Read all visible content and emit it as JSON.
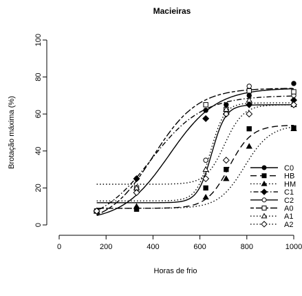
{
  "chart_data": {
    "type": "scatter",
    "title": "Macieiras",
    "xlabel": "Horas de frio",
    "ylabel": "Brotação máxima (%)",
    "xlim": [
      0,
      1000
    ],
    "ylim": [
      0,
      100
    ],
    "x_ticks": [
      0,
      200,
      400,
      600,
      800,
      1000
    ],
    "y_ticks": [
      0,
      20,
      40,
      60,
      80,
      100
    ],
    "grid": false,
    "legend_position": "bottom-right",
    "series": [
      {
        "name": "C0",
        "marker": "filled-circle",
        "line": "solid",
        "x": [
          160,
          330,
          625,
          712,
          810,
          1000
        ],
        "y": [
          7.5,
          25,
          62,
          65,
          70,
          76.5
        ],
        "fit": {
          "min": 2,
          "max": 74,
          "x50": 470,
          "slope": 100
        }
      },
      {
        "name": "HB",
        "marker": "filled-square",
        "line": "longdash",
        "x": [
          160,
          330,
          625,
          712,
          810,
          1000
        ],
        "y": [
          7.5,
          8.5,
          20,
          30,
          52,
          52.5
        ],
        "fit": {
          "min": 9,
          "max": 54,
          "x50": 725,
          "slope": 48
        }
      },
      {
        "name": "HM",
        "marker": "filled-triangle",
        "line": "dotted",
        "x": [
          160,
          330,
          625,
          712,
          810,
          1000
        ],
        "y": [
          7.5,
          10,
          15,
          25,
          42.5,
          52
        ],
        "fit": {
          "min": 9,
          "max": 54,
          "x50": 790,
          "slope": 55
        }
      },
      {
        "name": "C1",
        "marker": "filled-diamond",
        "line": "dotdash",
        "x": [
          160,
          330,
          625,
          712,
          810,
          1000
        ],
        "y": [
          7.5,
          25,
          57.5,
          60,
          65,
          67.5
        ],
        "fit": {
          "min": 0,
          "max": 70,
          "x50": 390,
          "slope": 110
        }
      },
      {
        "name": "C2",
        "marker": "open-circle",
        "line": "solid",
        "x": [
          160,
          330,
          625,
          712,
          810,
          1000
        ],
        "y": [
          7.5,
          17.5,
          35,
          60,
          75,
          70
        ],
        "fit": {
          "min": 12,
          "max": 65,
          "x50": 650,
          "slope": 30
        }
      },
      {
        "name": "A0",
        "marker": "open-square",
        "line": "twodash",
        "x": [
          160,
          330,
          625,
          712,
          810,
          1000
        ],
        "y": [
          7.5,
          20,
          65,
          62.5,
          72.5,
          72
        ],
        "fit": {
          "min": 0,
          "max": 74,
          "x50": 400,
          "slope": 95
        }
      },
      {
        "name": "A1",
        "marker": "open-triangle",
        "line": "dotted",
        "x": [
          160,
          330,
          625,
          712,
          810,
          1000
        ],
        "y": [
          7.5,
          20,
          30,
          62.5,
          67.5,
          65
        ],
        "fit": {
          "min": 13,
          "max": 66,
          "x50": 645,
          "slope": 30
        }
      },
      {
        "name": "A2",
        "marker": "open-diamond",
        "line": "dotted",
        "x": [
          160,
          330,
          625,
          712,
          810,
          1000
        ],
        "y": [
          7.5,
          17.5,
          25,
          35,
          60,
          65
        ],
        "fit": {
          "min": 22,
          "max": 65,
          "x50": 705,
          "slope": 40
        }
      }
    ]
  }
}
